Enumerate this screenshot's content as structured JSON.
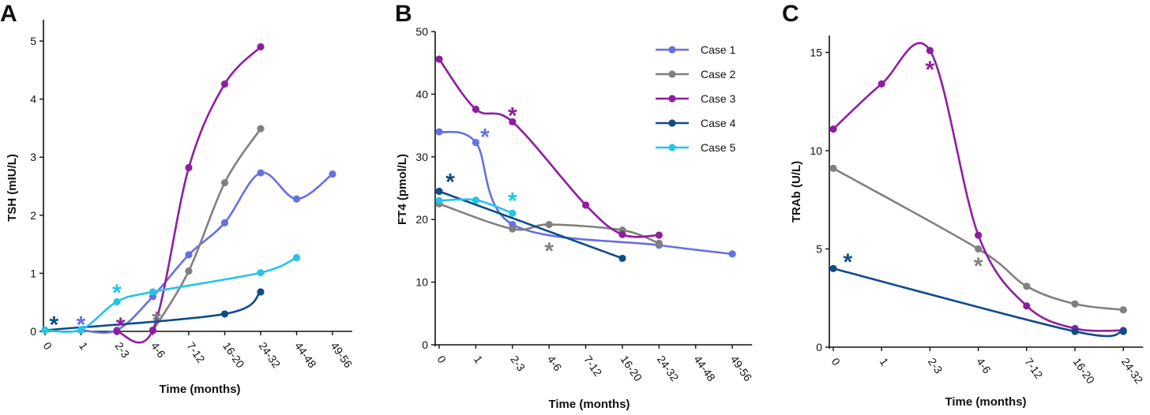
{
  "figure": {
    "panels": [
      "A",
      "B",
      "C"
    ]
  },
  "chart_data": [
    {
      "panel": "A",
      "type": "line",
      "xlabel": "Time (months)",
      "ylabel": "TSH (mIU/L)",
      "categories": [
        "0",
        "1",
        "2-3",
        "4-6",
        "7-12",
        "16-20",
        "24-32",
        "44-48",
        "49-56"
      ],
      "yticks": [
        "0",
        "1",
        "2",
        "3",
        "4",
        "5"
      ],
      "ylim": [
        0,
        5.3
      ],
      "series": [
        {
          "name": "Case 1",
          "color": "#6670e0",
          "points": [
            [
              1,
              0.02
            ],
            [
              2,
              0.02
            ],
            [
              3,
              0.6
            ],
            [
              4,
              1.32
            ],
            [
              5,
              1.87
            ],
            [
              6,
              2.73
            ],
            [
              7,
              2.28
            ],
            [
              8,
              2.71
            ]
          ]
        },
        {
          "name": "Case 2",
          "color": "#808080",
          "points": [
            [
              3,
              0.01
            ],
            [
              4,
              1.04
            ],
            [
              5,
              2.56
            ],
            [
              6,
              3.49
            ]
          ]
        },
        {
          "name": "Case 3",
          "color": "#8e1ea0",
          "points": [
            [
              2,
              0.0
            ],
            [
              3,
              0.02
            ],
            [
              4,
              2.82
            ],
            [
              5,
              4.26
            ],
            [
              6,
              4.9
            ]
          ]
        },
        {
          "name": "Case 4",
          "color": "#0e4c8a",
          "points": [
            [
              0,
              0.02
            ],
            [
              5,
              0.3
            ],
            [
              6,
              0.68
            ]
          ]
        },
        {
          "name": "Case 5",
          "color": "#26c4e8",
          "points": [
            [
              0,
              0.02
            ],
            [
              1,
              0.03
            ],
            [
              2,
              0.51
            ],
            [
              3,
              0.68
            ],
            [
              6,
              1.01
            ],
            [
              7,
              1.27
            ]
          ]
        }
      ],
      "asterisks": [
        {
          "series": "Case 4",
          "x": 0.25,
          "y": 0.17
        },
        {
          "series": "Case 1",
          "x": 1.0,
          "y": 0.17
        },
        {
          "series": "Case 5",
          "x": 2.0,
          "y": 0.72
        },
        {
          "series": "Case 3",
          "x": 2.1,
          "y": 0.15
        },
        {
          "series": "Case 2",
          "x": 3.1,
          "y": 0.25
        }
      ]
    },
    {
      "panel": "B",
      "type": "line",
      "xlabel": "Time (months)",
      "ylabel": "FT4 (pmol/L)",
      "categories": [
        "0",
        "1",
        "2-3",
        "4-6",
        "7-12",
        "16-20",
        "24-32",
        "44-48",
        "49-56"
      ],
      "yticks": [
        "0",
        "10",
        "20",
        "30",
        "40",
        "50"
      ],
      "ylim": [
        0,
        50
      ],
      "legend_position": "top-right",
      "legend": [
        "Case 1",
        "Case 2",
        "Case 3",
        "Case 4",
        "Case 5"
      ],
      "series": [
        {
          "name": "Case 1",
          "color": "#6670e0",
          "points": [
            [
              0,
              34.0
            ],
            [
              1,
              32.3
            ],
            [
              2,
              19.2
            ],
            [
              6,
              15.9
            ],
            [
              8,
              14.5
            ]
          ]
        },
        {
          "name": "Case 2",
          "color": "#808080",
          "points": [
            [
              0,
              22.5
            ],
            [
              2,
              18.5
            ],
            [
              3,
              19.2
            ],
            [
              5,
              18.3
            ],
            [
              6,
              16.2
            ]
          ]
        },
        {
          "name": "Case 3",
          "color": "#8e1ea0",
          "points": [
            [
              0,
              45.6
            ],
            [
              1,
              37.6
            ],
            [
              2,
              35.6
            ],
            [
              4,
              22.3
            ],
            [
              5,
              17.6
            ],
            [
              6,
              17.5
            ]
          ]
        },
        {
          "name": "Case 4",
          "color": "#0e4c8a",
          "points": [
            [
              0,
              24.5
            ],
            [
              5,
              13.8
            ]
          ]
        },
        {
          "name": "Case 5",
          "color": "#26c4e8",
          "points": [
            [
              0,
              23.0
            ],
            [
              1,
              23.1
            ],
            [
              2,
              21.0
            ]
          ]
        }
      ],
      "asterisks": [
        {
          "series": "Case 4",
          "x": 0.3,
          "y": 26.5
        },
        {
          "series": "Case 1",
          "x": 1.25,
          "y": 33.7
        },
        {
          "series": "Case 3",
          "x": 2.0,
          "y": 37.1
        },
        {
          "series": "Case 5",
          "x": 2.0,
          "y": 23.5
        },
        {
          "series": "Case 2",
          "x": 3.0,
          "y": 15.5
        }
      ]
    },
    {
      "panel": "C",
      "type": "line",
      "xlabel": "Time (months)",
      "ylabel": "TRAb (U/L)",
      "categories": [
        "0",
        "1",
        "2-3",
        "4-6",
        "7-12",
        "16-20",
        "24-32"
      ],
      "yticks": [
        "0",
        "5",
        "10",
        "15"
      ],
      "ylim": [
        0,
        16
      ],
      "series": [
        {
          "name": "Case 2",
          "color": "#808080",
          "points": [
            [
              0,
              9.1
            ],
            [
              3,
              5.0
            ],
            [
              4,
              3.1
            ],
            [
              5,
              2.2
            ],
            [
              6,
              1.9
            ]
          ]
        },
        {
          "name": "Case 3",
          "color": "#8e1ea0",
          "points": [
            [
              0,
              11.1
            ],
            [
              1,
              13.4
            ],
            [
              2,
              15.1
            ],
            [
              3,
              5.7
            ],
            [
              4,
              2.1
            ],
            [
              5,
              0.95
            ],
            [
              6,
              0.85
            ]
          ]
        },
        {
          "name": "Case 4",
          "color": "#0e4c8a",
          "points": [
            [
              0,
              4.0
            ],
            [
              5,
              0.8
            ],
            [
              6,
              0.8
            ]
          ]
        }
      ],
      "asterisks": [
        {
          "series": "Case 3",
          "x": 2.0,
          "y": 14.3
        },
        {
          "series": "Case 4",
          "x": 0.3,
          "y": 4.5
        },
        {
          "series": "Case 2",
          "x": 3.0,
          "y": 4.3
        }
      ]
    }
  ]
}
